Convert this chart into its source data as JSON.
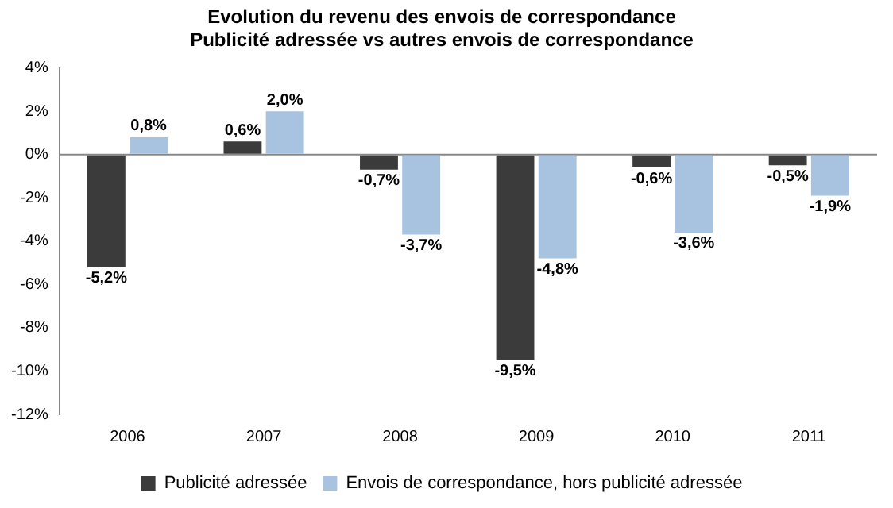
{
  "chart_data": {
    "type": "bar",
    "title": "Evolution du revenu des envois de correspondance",
    "subtitle": "Publicité adressée vs autres envois de correspondance",
    "categories": [
      "2006",
      "2007",
      "2008",
      "2009",
      "2010",
      "2011"
    ],
    "series": [
      {
        "name": "Publicité adressée",
        "color": "#3b3b3b",
        "values": [
          -5.2,
          0.6,
          -0.7,
          -9.5,
          -0.6,
          -0.5
        ],
        "value_labels": [
          "-5,2%",
          "0,6%",
          "-0,7%",
          "-9,5%",
          "-0,6%",
          "-0,5%"
        ]
      },
      {
        "name": "Envois de correspondance, hors publicité adressée",
        "color": "#a7c3e0",
        "values": [
          0.8,
          2.0,
          -3.7,
          -4.8,
          -3.6,
          -1.9
        ],
        "value_labels": [
          "0,8%",
          "2,0%",
          "-3,7%",
          "-4,8%",
          "-3,6%",
          "-1,9%"
        ]
      }
    ],
    "ylim": [
      -12,
      4
    ],
    "yticks": [
      {
        "value": -12,
        "label": "-12%"
      },
      {
        "value": -10,
        "label": "-10%"
      },
      {
        "value": -8,
        "label": "-8%"
      },
      {
        "value": -6,
        "label": "-6%"
      },
      {
        "value": -4,
        "label": "-4%"
      },
      {
        "value": -2,
        "label": "-2%"
      },
      {
        "value": 0,
        "label": "0%"
      },
      {
        "value": 2,
        "label": "2%"
      },
      {
        "value": 4,
        "label": "4%"
      }
    ],
    "ref_lines": [
      {
        "axis": "y",
        "value": 0,
        "color": "#888888"
      }
    ],
    "grid": false,
    "legend": "bottom"
  }
}
